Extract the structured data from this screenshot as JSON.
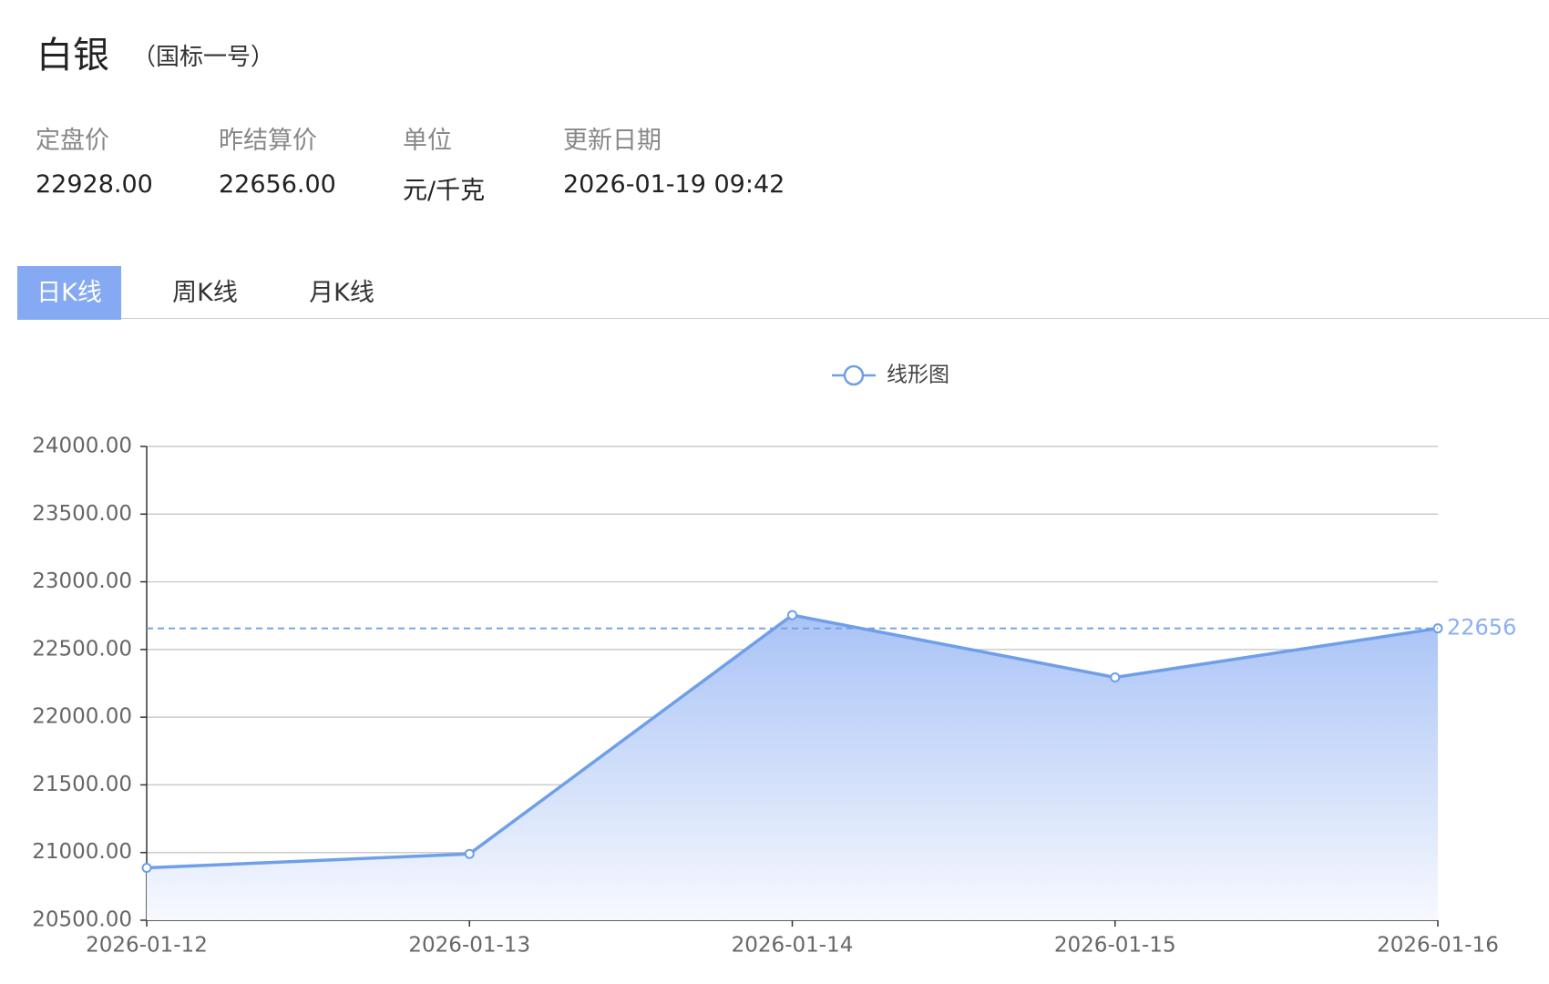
{
  "header": {
    "title": "白银",
    "subtitle": "（国标一号）"
  },
  "info": [
    {
      "label": "定盘价",
      "value": "22928.00"
    },
    {
      "label": "昨结算价",
      "value": "22656.00"
    },
    {
      "label": "单位",
      "value": "元/千克"
    },
    {
      "label": "更新日期",
      "value": "2026-01-19 09:42"
    }
  ],
  "tabs": [
    "日K线",
    "周K线",
    "月K线"
  ],
  "chart_data": {
    "type": "area",
    "categories": [
      "2026-01-12",
      "2026-01-13",
      "2026-01-14",
      "2026-01-15",
      "2026-01-16"
    ],
    "series": [
      {
        "name": "线形图",
        "color": "#6f9fe8",
        "values": [
          20887,
          20990,
          22754,
          22294,
          22656
        ]
      }
    ],
    "ylim": [
      20500,
      24000
    ],
    "yticks": [
      {
        "value": 20500,
        "label": "20500.00"
      },
      {
        "value": 21000,
        "label": "21000.00"
      },
      {
        "value": 21500,
        "label": "21500.00"
      },
      {
        "value": 22000,
        "label": "22000.00"
      },
      {
        "value": 22500,
        "label": "22500.00"
      },
      {
        "value": 23000,
        "label": "23000.00"
      },
      {
        "value": 23500,
        "label": "23500.00"
      },
      {
        "value": 24000,
        "label": "24000.00"
      }
    ],
    "markline": 22656,
    "grid": true
  }
}
